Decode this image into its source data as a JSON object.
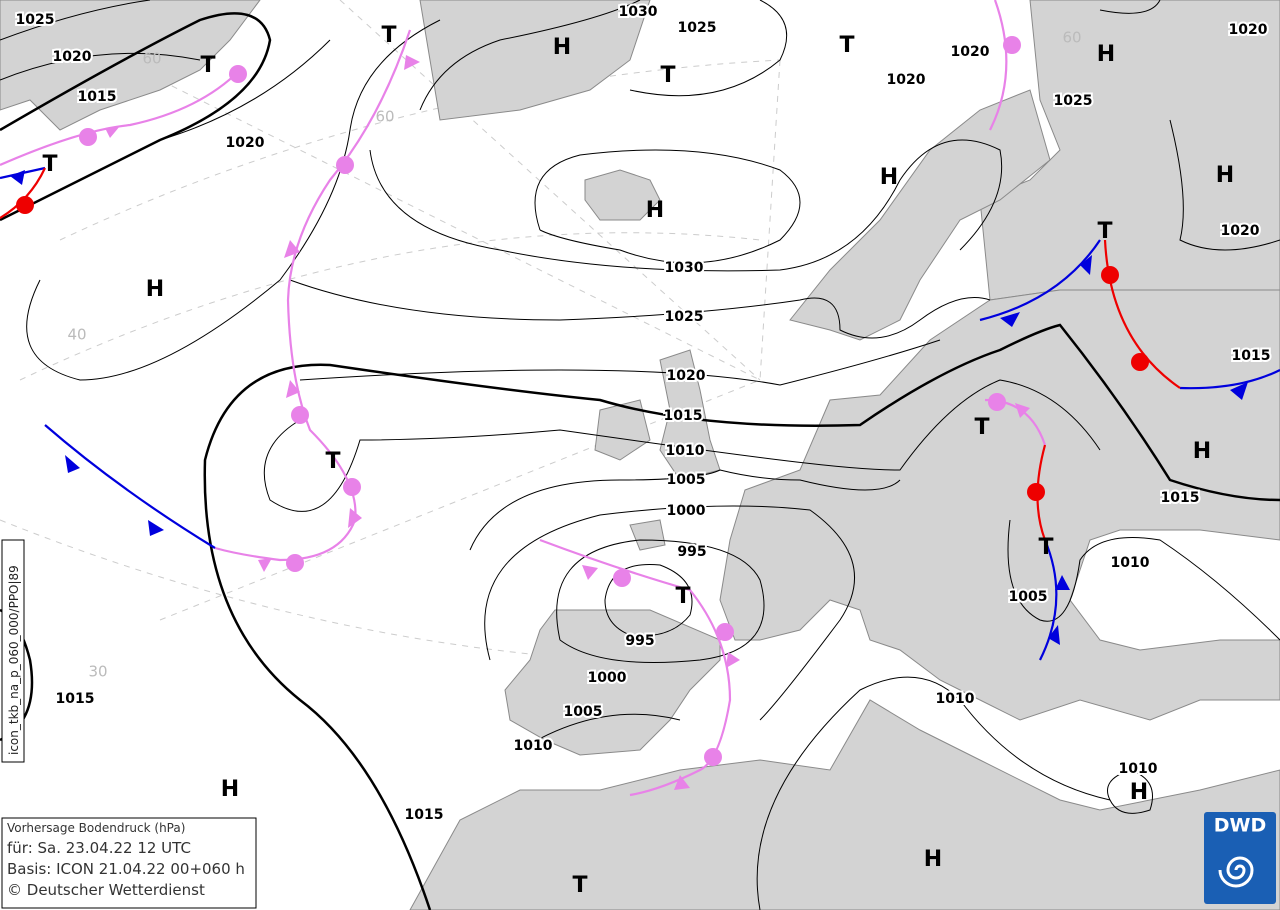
{
  "isobar_labels": [
    1025,
    1020,
    1015,
    1020,
    1030,
    1025,
    1020,
    1020,
    1025,
    1020,
    1020,
    1030,
    1025,
    1020,
    1015,
    1010,
    1005,
    1000,
    995,
    995,
    1000,
    1005,
    1010,
    1015,
    1015,
    1010,
    1015,
    1015,
    1010,
    1005,
    1010
  ],
  "high_centers": [
    "H",
    "H",
    "H",
    "H",
    "H",
    "H",
    "H",
    "H",
    "H",
    "H"
  ],
  "low_centers": [
    "T",
    "T",
    "T",
    "T",
    "T",
    "T",
    "T",
    "T",
    "T",
    "T",
    "T"
  ],
  "grid_labels": [
    "60",
    "60",
    "40",
    "30",
    "60"
  ],
  "info_box": [
    "Vorhersage Bodendruck (hPa)",
    "für:  Sa. 23.04.22  12 UTC",
    "Basis: ICON  21.04.22 00+060 h",
    "© Deutscher Wetterdienst"
  ],
  "side_label": "icon_tkb_na_p_060_000/PPO|89",
  "logo": "DWD"
}
